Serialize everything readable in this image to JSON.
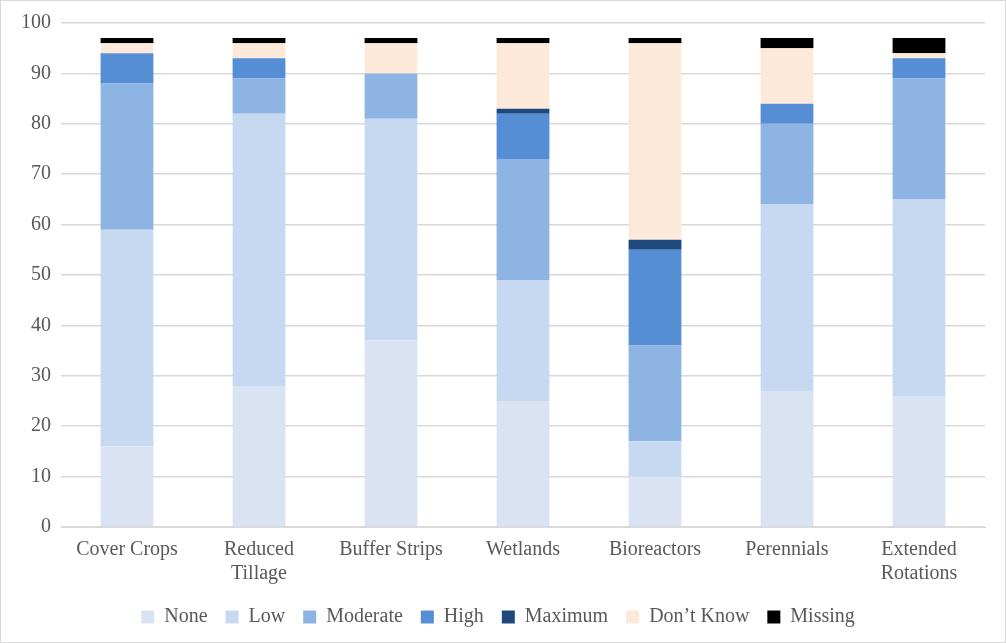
{
  "chart_data": {
    "type": "bar",
    "stacked": true,
    "categories": [
      "Cover Crops",
      "Reduced Tillage",
      "Buffer Strips",
      "Wetlands",
      "Bioreactors",
      "Perennials",
      "Extended Rotations"
    ],
    "series": [
      {
        "name": "None",
        "color": "#dae3f3",
        "values": [
          16,
          28,
          37,
          25,
          10,
          27,
          26
        ]
      },
      {
        "name": "Low",
        "color": "#c6d9f1",
        "values": [
          43,
          54,
          44,
          24,
          7,
          37,
          39
        ]
      },
      {
        "name": "Moderate",
        "color": "#8eb4e3",
        "values": [
          29,
          7,
          9,
          24,
          19,
          16,
          24
        ]
      },
      {
        "name": "High",
        "color": "#558ed5",
        "values": [
          6,
          4,
          0,
          9,
          19,
          4,
          4
        ]
      },
      {
        "name": "Maximum",
        "color": "#1f497d",
        "values": [
          0,
          0,
          0,
          1,
          2,
          0,
          0
        ]
      },
      {
        "name": "Don’t Know",
        "color": "#fde9d9",
        "values": [
          2,
          3,
          6,
          13,
          39,
          11,
          1
        ]
      },
      {
        "name": "Missing",
        "color": "#000000",
        "values": [
          1,
          1,
          1,
          1,
          1,
          2,
          3
        ]
      }
    ],
    "ylim": [
      0,
      100
    ],
    "yticks": [
      0,
      10,
      20,
      30,
      40,
      50,
      60,
      70,
      80,
      90,
      100
    ],
    "grid": "y",
    "legend": "bottom"
  }
}
